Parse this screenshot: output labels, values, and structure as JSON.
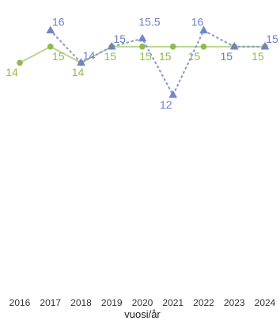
{
  "chart_data": {
    "type": "line",
    "xlabel": "vuosi/år",
    "ylabel": "",
    "x": [
      "2016",
      "2017",
      "2018",
      "2019",
      "2020",
      "2021",
      "2022",
      "2023",
      "2024"
    ],
    "ylim": [
      0,
      17.5
    ],
    "grid": false,
    "legend": "none",
    "series": [
      {
        "values": [
          14,
          15,
          14,
          15,
          15,
          15,
          15,
          15,
          15
        ],
        "labels": [
          "14",
          "15",
          "14",
          "15",
          "15",
          "15",
          "15",
          "15",
          "15"
        ],
        "color": "#8dbb4f",
        "line_color": "#b9d68f",
        "line_style": "solid",
        "marker": "circle"
      },
      {
        "values": [
          null,
          16,
          14,
          15,
          15.5,
          12,
          16,
          15,
          15
        ],
        "labels": [
          "",
          "16",
          "14",
          "15",
          "15.5",
          "12",
          "16",
          "15",
          "15"
        ],
        "color": "#6f7fc6",
        "line_color": "#8f9bd3",
        "line_style": "dotted",
        "marker": "triangle"
      }
    ]
  }
}
